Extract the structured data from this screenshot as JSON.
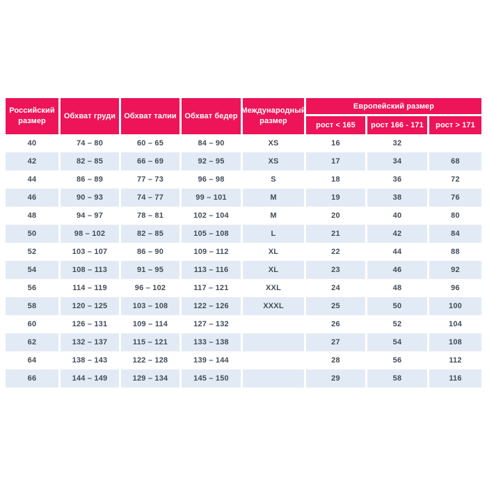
{
  "colors": {
    "header_bg": "#ED1459",
    "header_text": "#FFFFFF",
    "row_alt_bg": "#E2EBF5",
    "body_text": "#424C57"
  },
  "table": {
    "headers": {
      "russian_size": "Российский размер",
      "chest": "Обхват груди",
      "waist": "Обхват талии",
      "hips": "Обхват бедер",
      "international_size": "Международный размер",
      "european_size": "Европейский размер",
      "height_lt_165": "рост < 165",
      "height_166_171": "рост 166 - 171",
      "height_gt_171": "рост > 171"
    },
    "rows": [
      [
        "40",
        "74 – 80",
        "60 – 65",
        "84 – 90",
        "XS",
        "16",
        "32",
        ""
      ],
      [
        "42",
        "82 – 85",
        "66 – 69",
        "92 – 95",
        "XS",
        "17",
        "34",
        "68"
      ],
      [
        "44",
        "86 – 89",
        "77 – 73",
        "96 – 98",
        "S",
        "18",
        "36",
        "72"
      ],
      [
        "46",
        "90 – 93",
        "74 – 77",
        "99 – 101",
        "M",
        "19",
        "38",
        "76"
      ],
      [
        "48",
        "94 – 97",
        "78 – 81",
        "102 – 104",
        "M",
        "20",
        "40",
        "80"
      ],
      [
        "50",
        "98 – 102",
        "82 – 85",
        "105 – 108",
        "L",
        "21",
        "42",
        "84"
      ],
      [
        "52",
        "103 – 107",
        "86 – 90",
        "109 – 112",
        "XL",
        "22",
        "44",
        "88"
      ],
      [
        "54",
        "108 – 113",
        "91 – 95",
        "113 – 116",
        "XL",
        "23",
        "46",
        "92"
      ],
      [
        "56",
        "114 – 119",
        "96 – 102",
        "117 – 121",
        "XXL",
        "24",
        "48",
        "96"
      ],
      [
        "58",
        "120 – 125",
        "103 – 108",
        "122 – 126",
        "XXXL",
        "25",
        "50",
        "100"
      ],
      [
        "60",
        "126 – 131",
        "109 – 114",
        "127 – 132",
        "",
        "26",
        "52",
        "104"
      ],
      [
        "62",
        "132 – 137",
        "115 – 121",
        "133 – 138",
        "",
        "27",
        "54",
        "108"
      ],
      [
        "64",
        "138 – 143",
        "122 – 128",
        "139 – 144",
        "",
        "28",
        "56",
        "112"
      ],
      [
        "66",
        "144 – 149",
        "129 – 134",
        "145 – 150",
        "",
        "29",
        "58",
        "116"
      ]
    ]
  }
}
